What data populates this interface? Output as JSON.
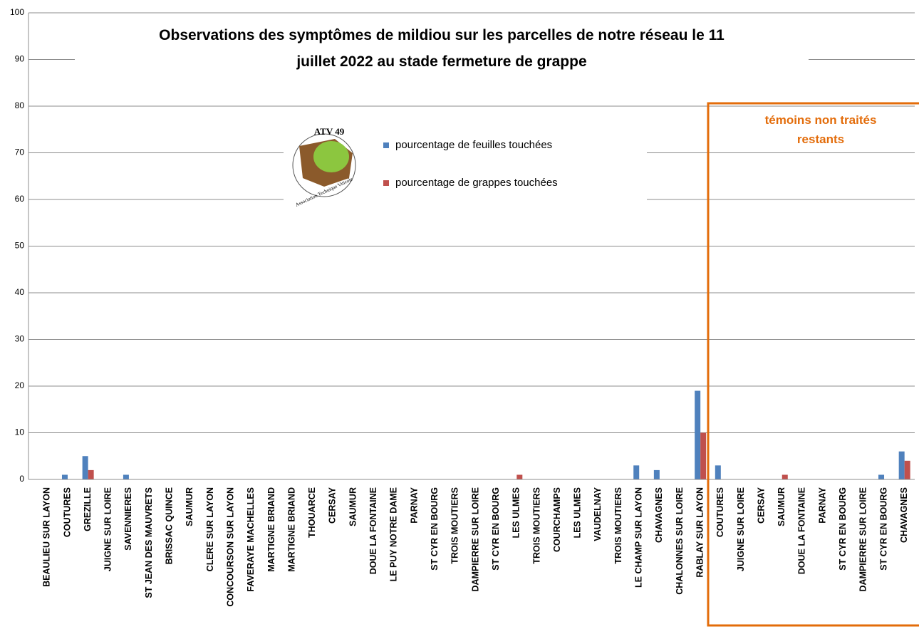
{
  "chart_data": {
    "type": "bar",
    "title": "Observations des symptômes de mildiou sur les parcelles de notre réseau le 11 juillet 2022 au stade fermeture de grappe",
    "categories": [
      "BEAULIEU SUR LAYON",
      "COUTURES",
      "GREZILLE",
      "JUIGNE SUR LOIRE",
      "SAVENNIERES",
      "ST JEAN DES MAUVRETS",
      "BRISSAC QUINCE",
      "SAUMUR",
      "CLERE SUR LAYON",
      "CONCOURSON SUR LAYON",
      "FAVERAYE MACHELLES",
      "MARTIGNE BRIAND",
      "MARTIGNE BRIAND",
      "THOUARCE",
      "CERSAY",
      "SAUMUR",
      "DOUE LA FONTAINE",
      "LE PUY NOTRE DAME",
      "PARNAY",
      "ST CYR EN BOURG",
      "TROIS MOUTIERS",
      "DAMPIERRE SUR LOIRE",
      "ST CYR EN BOURG",
      "LES ULMES",
      "TROIS MOUTIERS",
      "COURCHAMPS",
      "LES ULMES",
      "VAUDELNAY",
      "TROIS MOUTIERS",
      "LE CHAMP SUR LAYON",
      "CHAVAGNES",
      "CHALONNES SUR LOIRE",
      "RABLAY SUR LAYON",
      "COUTURES",
      "JUIGNE SUR LOIRE",
      "CERSAY",
      "SAUMUR",
      "DOUE LA FONTAINE",
      "PARNAY",
      "ST CYR EN BOURG",
      "DAMPIERRE SUR LOIRE",
      "ST CYR EN BOURG",
      "CHAVAGNES"
    ],
    "series": [
      {
        "name": "pourcentage de feuilles touchées",
        "color": "#4f81bd",
        "values": [
          0,
          1,
          5,
          0,
          1,
          0,
          0,
          0,
          0,
          0,
          0,
          0,
          0,
          0,
          0,
          0,
          0,
          0,
          0,
          0,
          0,
          0,
          0,
          0,
          0,
          0,
          0,
          0,
          0,
          3,
          2,
          0,
          19,
          3,
          0,
          0,
          0,
          0,
          0,
          0,
          0,
          1,
          6
        ]
      },
      {
        "name": "pourcentage de grappes touchées",
        "color": "#c0504d",
        "values": [
          0,
          0,
          2,
          0,
          0,
          0,
          0,
          0,
          0,
          0,
          0,
          0,
          0,
          0,
          0,
          0,
          0,
          0,
          0,
          0,
          0,
          0,
          0,
          1,
          0,
          0,
          0,
          0,
          0,
          0,
          0,
          0,
          10,
          0,
          0,
          0,
          1,
          0,
          0,
          0,
          0,
          0,
          4
        ]
      }
    ],
    "ylim": [
      0,
      100
    ],
    "yticks": [
      0,
      10,
      20,
      30,
      40,
      50,
      60,
      70,
      80,
      90,
      100
    ],
    "grid": true,
    "annotation": "témoins non traités restants",
    "logo": {
      "name": "ATV 49",
      "caption": "Association Technique Viticole"
    }
  }
}
